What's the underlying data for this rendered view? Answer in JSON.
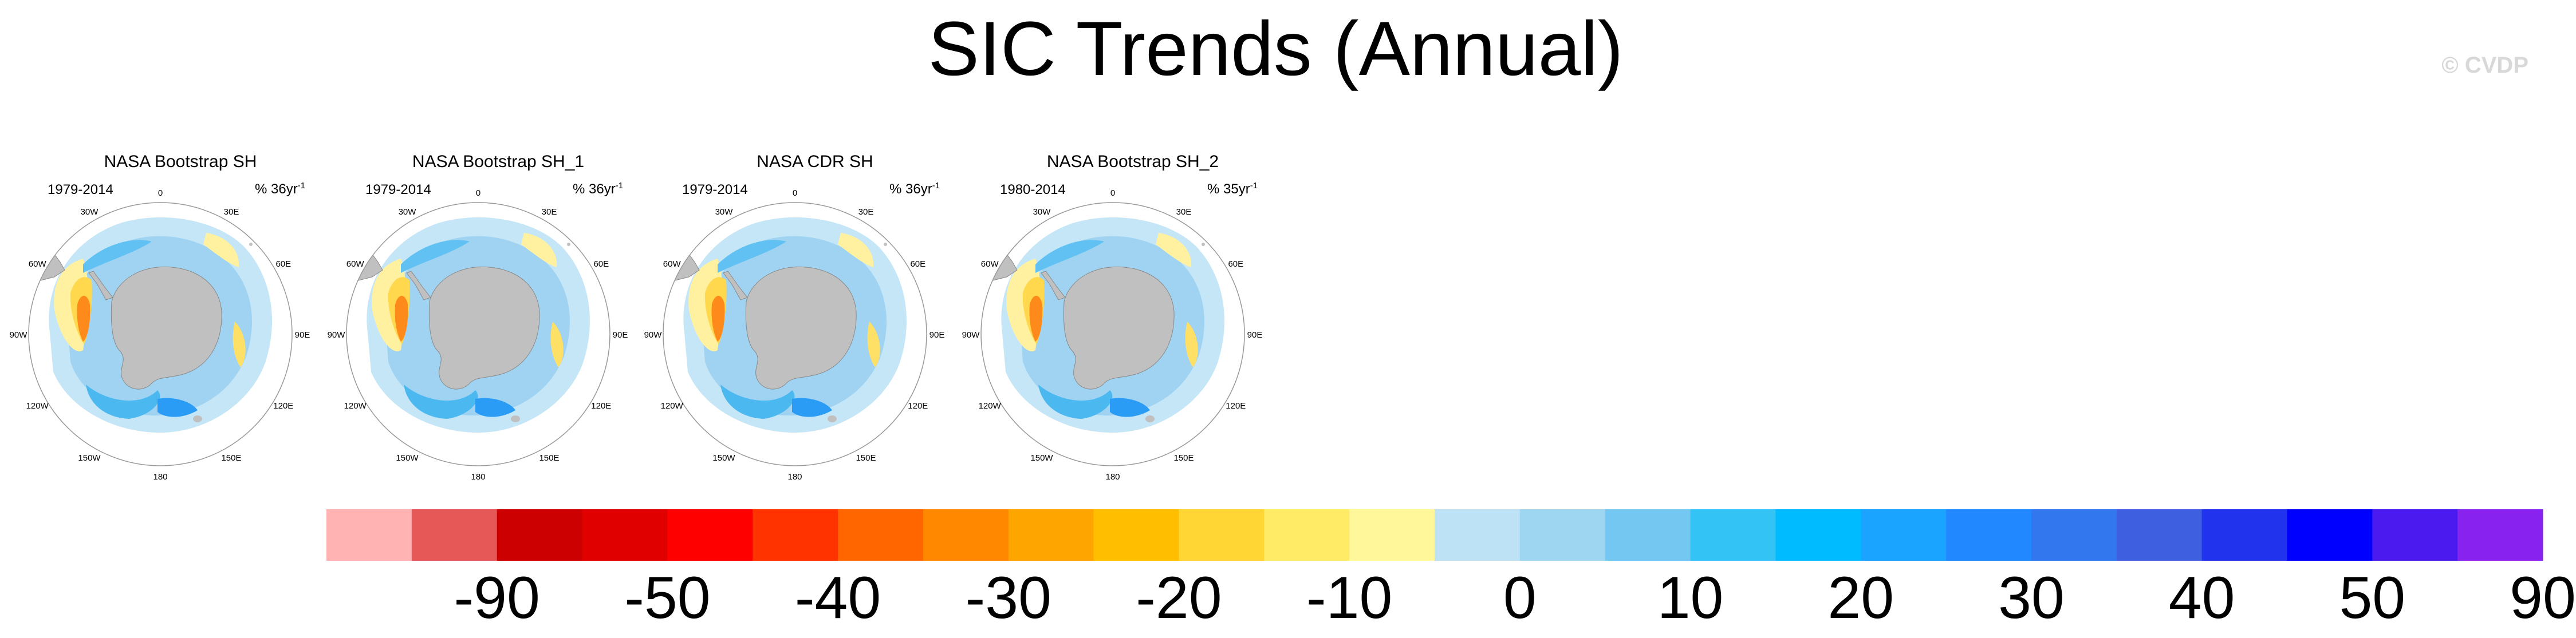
{
  "title": "SIC Trends (Annual)",
  "watermark": "© CVDP",
  "chart_data": {
    "type": "heatmap",
    "projection": "south-polar-stereographic",
    "panels": [
      {
        "title": "NASA Bootstrap SH",
        "period": "1979-2014",
        "units_prefix": "% 36yr",
        "units_exp": "-1"
      },
      {
        "title": "NASA Bootstrap SH_1",
        "period": "1979-2014",
        "units_prefix": "% 36yr",
        "units_exp": "-1"
      },
      {
        "title": "NASA CDR SH",
        "period": "1979-2014",
        "units_prefix": "% 36yr",
        "units_exp": "-1"
      },
      {
        "title": "NASA Bootstrap SH_2",
        "period": "1980-2014",
        "units_prefix": "% 35yr",
        "units_exp": "-1"
      }
    ],
    "longitude_labels": [
      "0",
      "30E",
      "60E",
      "90E",
      "120E",
      "150E",
      "180",
      "150W",
      "120W",
      "90W",
      "60W",
      "30W"
    ],
    "colorbar": {
      "colors": [
        "#ffb3b3",
        "#e65757",
        "#cc0000",
        "#e00000",
        "#ff0000",
        "#ff3300",
        "#ff6600",
        "#ff8800",
        "#ffa500",
        "#ffbf00",
        "#ffd633",
        "#ffeb66",
        "#fff799",
        "#bde1f5",
        "#9ed5f0",
        "#73c7f0",
        "#33c3f5",
        "#00bbff",
        "#1aa3ff",
        "#2288ff",
        "#3377ee",
        "#3d5fe0",
        "#2233ee",
        "#0000ff",
        "#4a1aee",
        "#8822ee"
      ],
      "tick_labels": [
        "-90",
        "-50",
        "-40",
        "-30",
        "-20",
        "-10",
        "0",
        "10",
        "20",
        "30",
        "40",
        "50",
        "90"
      ]
    }
  }
}
